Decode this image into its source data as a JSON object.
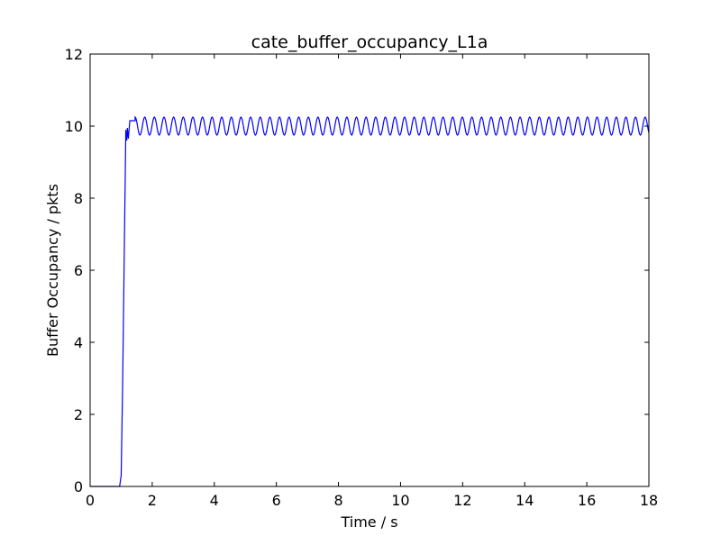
{
  "chart_data": {
    "type": "line",
    "title": "cate_buffer_occupancy_L1a",
    "xlabel": "Time / s",
    "ylabel": "Buffer Occupancy / pkts",
    "xlim": [
      0,
      18
    ],
    "ylim": [
      0,
      12
    ],
    "xticks": [
      0,
      2,
      4,
      6,
      8,
      10,
      12,
      14,
      16,
      18
    ],
    "yticks": [
      0,
      2,
      4,
      6,
      8,
      10,
      12
    ],
    "grid": false,
    "legend": "none",
    "line_color": "#0000ff",
    "series": [
      {
        "ramp": [
          [
            0,
            0
          ],
          [
            0.95,
            0
          ],
          [
            1.0,
            0.3
          ],
          [
            1.05,
            3.0
          ],
          [
            1.1,
            6.5
          ],
          [
            1.15,
            9.9
          ],
          [
            1.18,
            9.6
          ],
          [
            1.2,
            9.95
          ],
          [
            1.23,
            9.65
          ],
          [
            1.28,
            10.15
          ],
          [
            1.45,
            10.15
          ]
        ],
        "oscillation": {
          "start": 1.45,
          "end": 18.0,
          "center": 10.0,
          "amplitude": 0.25,
          "period": 0.31
        }
      }
    ]
  }
}
